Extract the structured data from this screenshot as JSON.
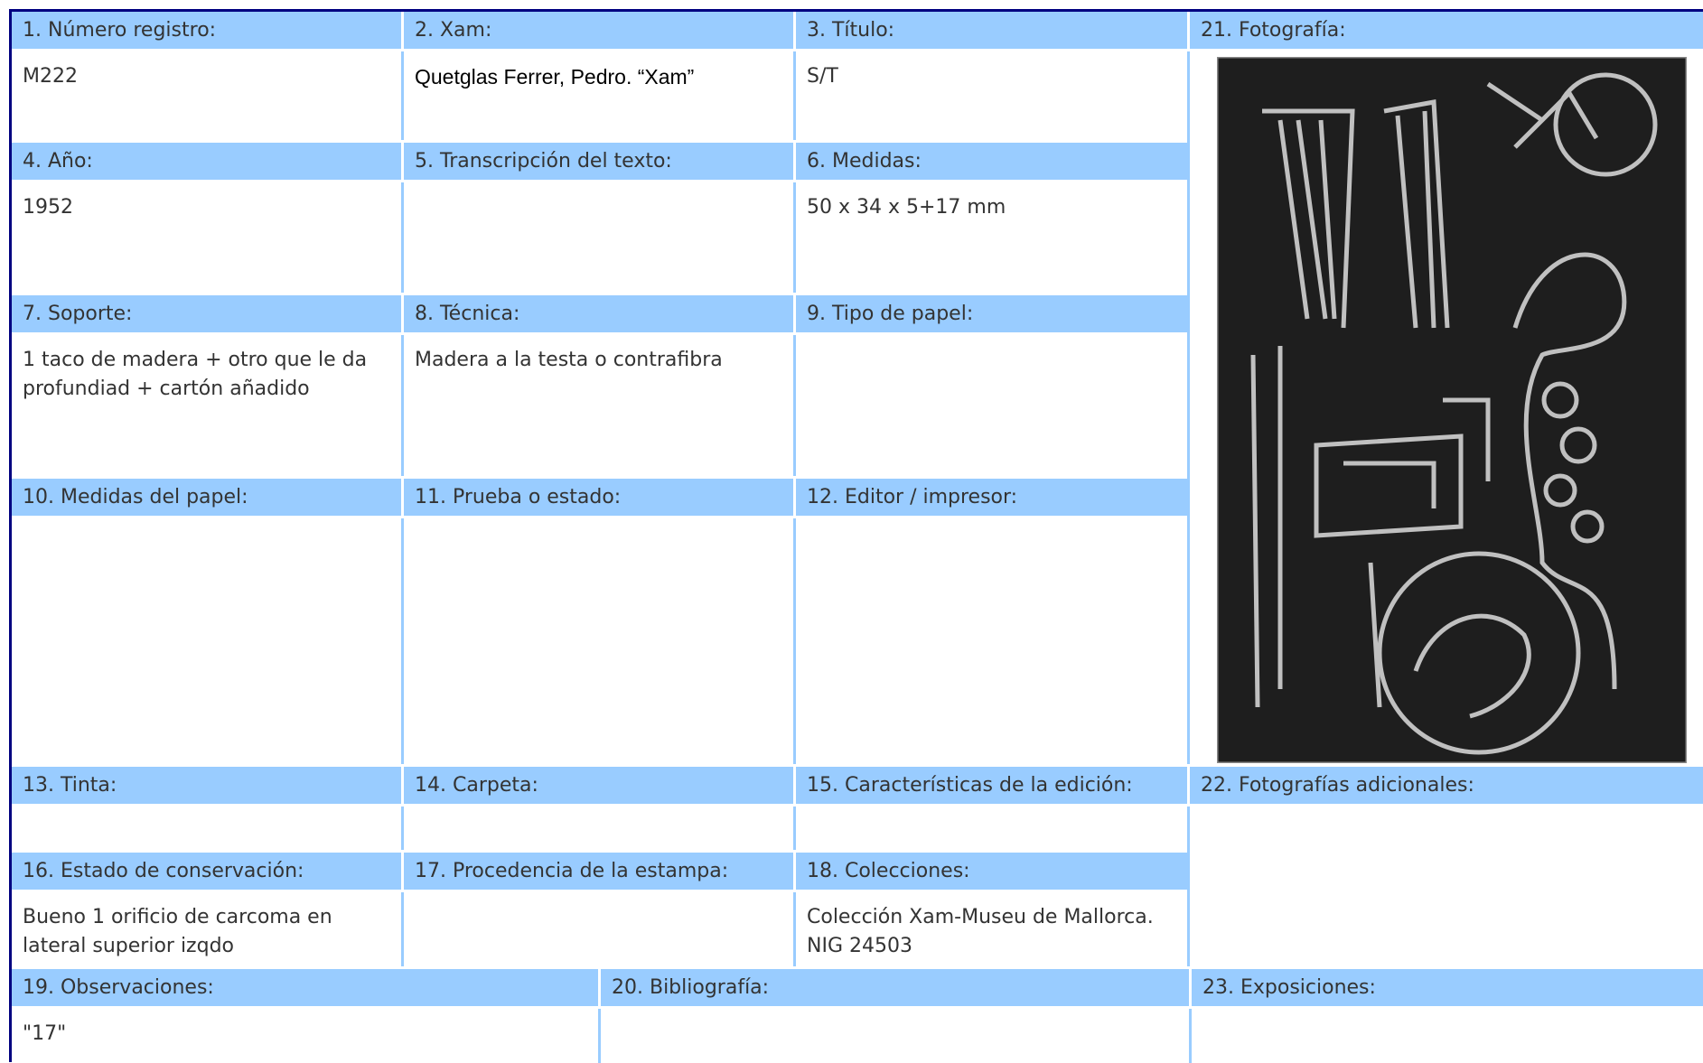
{
  "fields": [
    {
      "label": "1. Número registro:",
      "value": "M222"
    },
    {
      "label": "2. Xam:",
      "value": "Quetglas Ferrer, Pedro. “Xam”"
    },
    {
      "label": "3. Título:",
      "value": "S/T"
    },
    {
      "label": "4. Año:",
      "value": "1952"
    },
    {
      "label": "5. Transcripción del texto:"
    },
    {
      "label": "6. Medidas:",
      "value": "50 x 34 x 5+17 mm"
    },
    {
      "label": "7. Soporte:",
      "value": "1 taco de madera + otro que le da profundiad + cartón añadido"
    },
    {
      "label": "8. Técnica:",
      "value": "Madera a la testa o contrafibra"
    },
    {
      "label": "9. Tipo de papel:"
    },
    {
      "label": "10. Medidas del papel:"
    },
    {
      "label": "11. Prueba o estado:"
    },
    {
      "label": "12. Editor / impresor:"
    },
    {
      "label": "13. Tinta:"
    },
    {
      "label": "14. Carpeta:"
    },
    {
      "label": "15. Características de la edición:"
    },
    {
      "label": "16. Estado de conservación:",
      "value": "Bueno 1 orificio de carcoma en lateral superior izqdo"
    },
    {
      "label": "17. Procedencia de la estampa:"
    },
    {
      "label": "18. Colecciones:",
      "value": "Colección Xam-Museu de Mallorca. NIG 24503"
    },
    {
      "label": "19. Observaciones:",
      "value": "\"17\""
    },
    {
      "label": "20. Bibliografía:"
    },
    {
      "label": "21. Fotografía:"
    },
    {
      "label": "22. Fotografías adicionales:"
    },
    {
      "label": "23. Exposiciones:"
    }
  ]
}
